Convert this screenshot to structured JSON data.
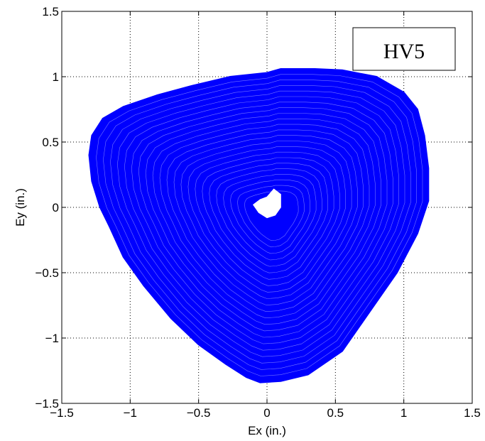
{
  "chart_data": {
    "type": "line",
    "title": "",
    "xlabel": "Ex (in.)",
    "ylabel": "Ey (in.)",
    "xlim": [
      -1.5,
      1.5
    ],
    "ylim": [
      -1.5,
      1.5
    ],
    "xticks": [
      -1.5,
      -1,
      -0.5,
      0,
      0.5,
      1,
      1.5
    ],
    "xtick_labels": [
      "−1.5",
      "−1",
      "−0.5",
      "0",
      "0.5",
      "1",
      "1.5"
    ],
    "yticks": [
      -1.5,
      -1,
      -0.5,
      0,
      0.5,
      1,
      1.5
    ],
    "ytick_labels": [
      "−1.5",
      "−1",
      "−0.5",
      "0",
      "0.5",
      "1",
      "1.5"
    ],
    "grid": true,
    "grid_style": "dotted",
    "legend_position": "top-right",
    "series": [
      {
        "name": "HV5",
        "color": "#0000ff",
        "outer_boundary": {
          "x": [
            -0.27,
            0.0,
            0.1,
            0.35,
            0.55,
            0.8,
            1.0,
            1.1,
            1.15,
            1.18,
            1.18,
            1.1,
            0.95,
            0.75,
            0.55,
            0.3,
            0.1,
            -0.05,
            -0.15,
            -0.3,
            -0.5,
            -0.7,
            -0.9,
            -1.05,
            -1.15,
            -1.22,
            -1.28,
            -1.3,
            -1.28,
            -1.2,
            -1.05,
            -0.8,
            -0.55,
            -0.35,
            -0.27
          ],
          "y": [
            1.0,
            1.03,
            1.06,
            1.06,
            1.05,
            1.0,
            0.88,
            0.75,
            0.55,
            0.3,
            0.05,
            -0.2,
            -0.5,
            -0.8,
            -1.1,
            -1.28,
            -1.33,
            -1.34,
            -1.3,
            -1.2,
            -1.05,
            -0.85,
            -0.6,
            -0.38,
            -0.15,
            0.0,
            0.2,
            0.4,
            0.55,
            0.68,
            0.77,
            0.86,
            0.93,
            0.98,
            1.0
          ]
        },
        "inner_hole": {
          "x": [
            -0.1,
            -0.05,
            0.0,
            0.05,
            0.1,
            0.1,
            0.06,
            0.0,
            -0.06,
            -0.1
          ],
          "y": [
            0.02,
            0.06,
            0.08,
            0.14,
            0.1,
            0.0,
            -0.06,
            -0.08,
            -0.04,
            0.02
          ]
        },
        "ring_count": 22,
        "min_scale": 0.12,
        "ring_color": "#ffffff"
      }
    ]
  }
}
